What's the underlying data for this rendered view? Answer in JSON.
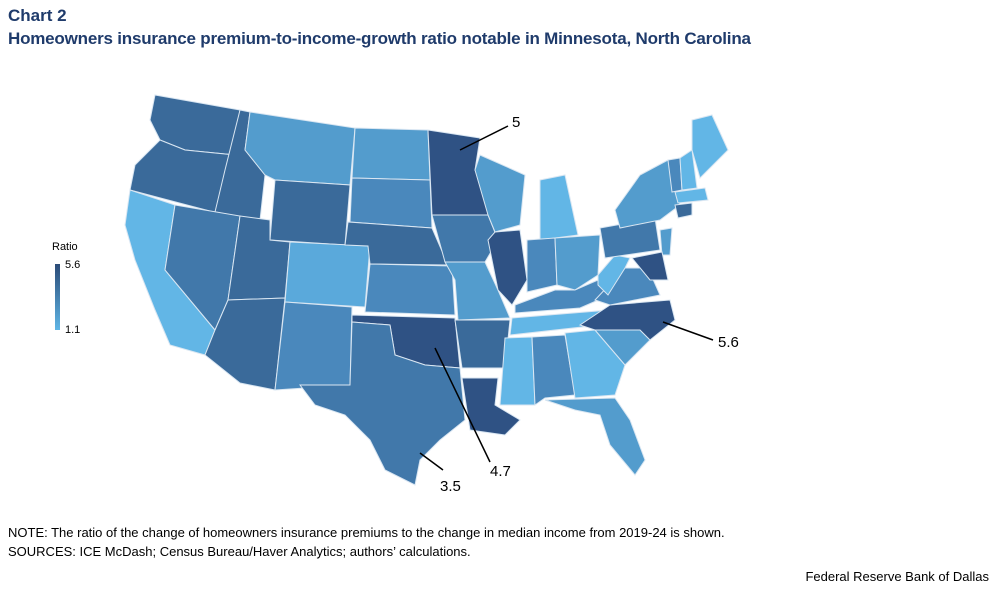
{
  "header": {
    "chart_label": "Chart 2",
    "title": "Homeowners insurance premium-to-income-growth ratio notable in Minnesota, North Carolina"
  },
  "legend": {
    "title": "Ratio",
    "max": "5.6",
    "min": "1.1"
  },
  "callouts": {
    "minnesota": "5",
    "north_carolina": "5.6",
    "oklahoma": "4.7",
    "texas": "3.5"
  },
  "footer": {
    "note": "NOTE: The ratio of the change of homeowners insurance premiums to the change in median income from 2019-24 is shown.",
    "sources": "SOURCES: ICE McDash; Census Bureau/Haver Analytics; authors’ calculations.",
    "credit": "Federal Reserve Bank of Dallas"
  },
  "colors": {
    "darkest": "#2f5284",
    "dark": "#3a6a9a",
    "mid_dark": "#4178aa",
    "mid": "#4a88bc",
    "mid_light": "#539ccd",
    "light": "#5aa9db",
    "lightest": "#62b6e6",
    "border": "#d9e6f2"
  },
  "map_data": {
    "type": "choropleth",
    "region": "Contiguous United States",
    "legend_range": [
      1.1,
      5.6
    ],
    "labeled_values": [
      {
        "state": "Minnesota",
        "value": 5
      },
      {
        "state": "North Carolina",
        "value": 5.6
      },
      {
        "state": "Oklahoma",
        "value": 4.7
      },
      {
        "state": "Texas",
        "value": 3.5
      }
    ]
  }
}
